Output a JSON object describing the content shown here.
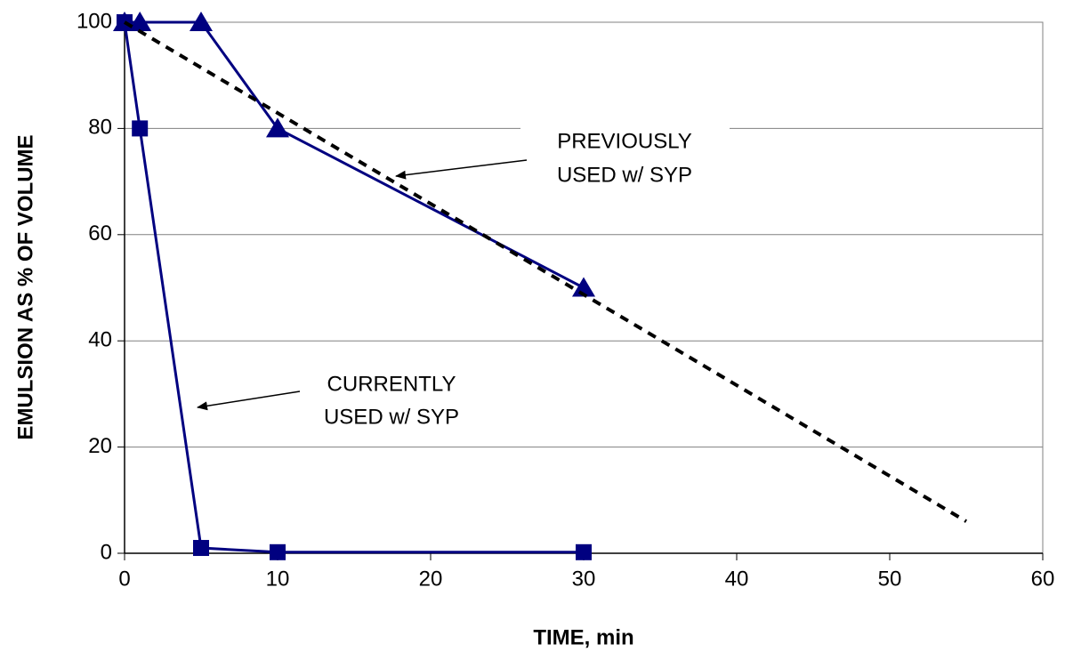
{
  "chart_data": {
    "type": "line",
    "xlabel": "TIME, min",
    "ylabel": "EMULSION AS % OF VOLUME",
    "xlim": [
      0,
      60
    ],
    "xticks": [
      0,
      10,
      20,
      30,
      40,
      50,
      60
    ],
    "ylim": [
      0,
      100
    ],
    "yticks": [
      0,
      20,
      40,
      60,
      80,
      100
    ],
    "grid": true,
    "series": [
      {
        "color": "#000080",
        "marker": "square",
        "style": "solid",
        "x": [
          0,
          1,
          5,
          10,
          30
        ],
        "values": [
          100,
          80,
          1,
          0.2,
          0.2
        ]
      },
      {
        "color": "#000080",
        "marker": "triangle",
        "style": "solid",
        "x": [
          0,
          1,
          5,
          10,
          30
        ],
        "values": [
          100,
          100,
          100,
          80,
          50
        ]
      },
      {
        "color": "#000000",
        "marker": "none",
        "style": "dotted",
        "x": [
          0,
          55
        ],
        "values": [
          100,
          6
        ]
      }
    ],
    "annotations": [
      {
        "lines": [
          "PREVIOUSLY",
          "USED w/ SYP"
        ]
      },
      {
        "lines": [
          "CURRENTLY",
          "USED w/ SYP"
        ]
      }
    ]
  }
}
